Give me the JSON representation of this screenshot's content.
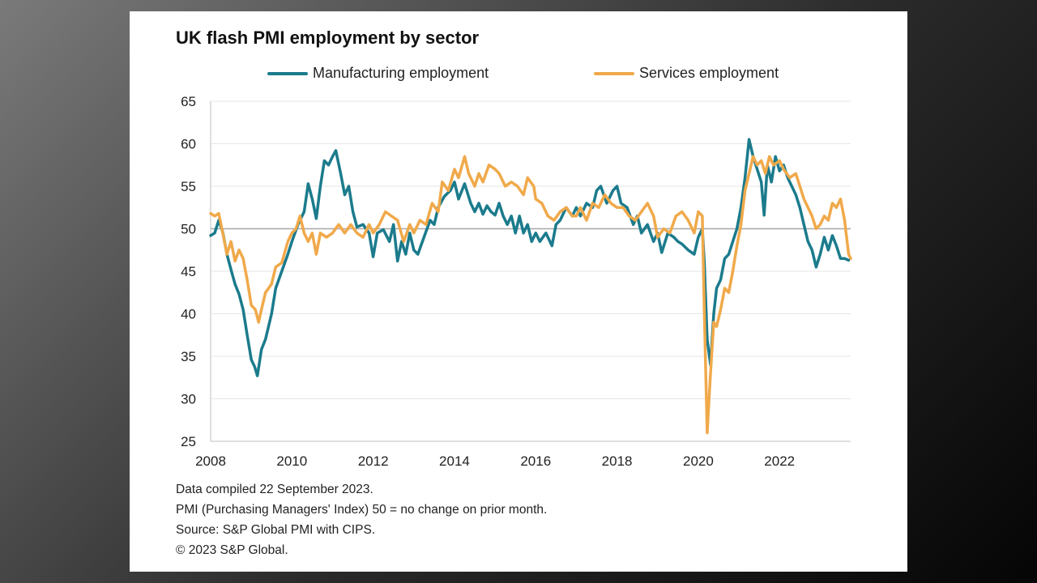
{
  "chart_data": {
    "type": "line",
    "title": "UK flash PMI employment by sector",
    "xlabel": "",
    "ylabel": "",
    "xlim": [
      2008.0,
      2023.75
    ],
    "ylim": [
      25,
      65
    ],
    "yticks": [
      25,
      30,
      35,
      40,
      45,
      50,
      55,
      60,
      65
    ],
    "xticks": [
      2008,
      2010,
      2012,
      2014,
      2016,
      2018,
      2020,
      2022
    ],
    "reference_line": 50,
    "grid": true,
    "legend_position": "top",
    "series": [
      {
        "name": "Manufacturing employment",
        "color": "#1b7b8c",
        "points": [
          [
            2008.0,
            49.2
          ],
          [
            2008.1,
            49.5
          ],
          [
            2008.2,
            51.0
          ],
          [
            2008.3,
            49.6
          ],
          [
            2008.4,
            47.0
          ],
          [
            2008.5,
            45.2
          ],
          [
            2008.6,
            43.5
          ],
          [
            2008.7,
            42.3
          ],
          [
            2008.8,
            40.5
          ],
          [
            2008.9,
            37.5
          ],
          [
            2009.0,
            34.6
          ],
          [
            2009.08,
            33.8
          ],
          [
            2009.15,
            32.7
          ],
          [
            2009.25,
            35.8
          ],
          [
            2009.35,
            37.0
          ],
          [
            2009.5,
            40.0
          ],
          [
            2009.6,
            43.0
          ],
          [
            2009.75,
            45.0
          ],
          [
            2009.9,
            47.0
          ],
          [
            2010.0,
            48.5
          ],
          [
            2010.15,
            50.5
          ],
          [
            2010.3,
            52.0
          ],
          [
            2010.4,
            55.3
          ],
          [
            2010.5,
            53.5
          ],
          [
            2010.6,
            51.2
          ],
          [
            2010.7,
            55.0
          ],
          [
            2010.8,
            58.0
          ],
          [
            2010.9,
            57.5
          ],
          [
            2011.0,
            58.5
          ],
          [
            2011.08,
            59.2
          ],
          [
            2011.2,
            56.5
          ],
          [
            2011.3,
            54.0
          ],
          [
            2011.4,
            55.0
          ],
          [
            2011.5,
            52.0
          ],
          [
            2011.6,
            50.2
          ],
          [
            2011.75,
            50.5
          ],
          [
            2011.9,
            49.5
          ],
          [
            2012.0,
            46.7
          ],
          [
            2012.1,
            49.5
          ],
          [
            2012.25,
            49.9
          ],
          [
            2012.4,
            48.5
          ],
          [
            2012.5,
            50.5
          ],
          [
            2012.6,
            46.2
          ],
          [
            2012.7,
            48.5
          ],
          [
            2012.8,
            47.0
          ],
          [
            2012.9,
            49.5
          ],
          [
            2013.0,
            47.5
          ],
          [
            2013.1,
            47.0
          ],
          [
            2013.25,
            49.0
          ],
          [
            2013.4,
            51.0
          ],
          [
            2013.5,
            50.5
          ],
          [
            2013.6,
            52.5
          ],
          [
            2013.75,
            53.8
          ],
          [
            2013.9,
            54.5
          ],
          [
            2014.0,
            55.5
          ],
          [
            2014.1,
            53.5
          ],
          [
            2014.25,
            55.3
          ],
          [
            2014.4,
            53.0
          ],
          [
            2014.5,
            52.0
          ],
          [
            2014.6,
            53.0
          ],
          [
            2014.7,
            51.7
          ],
          [
            2014.8,
            52.7
          ],
          [
            2014.9,
            52.0
          ],
          [
            2015.0,
            51.6
          ],
          [
            2015.1,
            53.0
          ],
          [
            2015.2,
            51.5
          ],
          [
            2015.3,
            50.5
          ],
          [
            2015.4,
            51.5
          ],
          [
            2015.5,
            49.5
          ],
          [
            2015.6,
            51.5
          ],
          [
            2015.7,
            49.5
          ],
          [
            2015.8,
            50.5
          ],
          [
            2015.9,
            48.5
          ],
          [
            2016.0,
            49.5
          ],
          [
            2016.1,
            48.5
          ],
          [
            2016.25,
            49.5
          ],
          [
            2016.4,
            48.0
          ],
          [
            2016.5,
            50.5
          ],
          [
            2016.6,
            51.0
          ],
          [
            2016.75,
            52.5
          ],
          [
            2016.9,
            51.5
          ],
          [
            2017.0,
            52.5
          ],
          [
            2017.1,
            51.5
          ],
          [
            2017.25,
            53.0
          ],
          [
            2017.4,
            52.5
          ],
          [
            2017.5,
            54.5
          ],
          [
            2017.6,
            55.0
          ],
          [
            2017.75,
            53.0
          ],
          [
            2017.9,
            54.5
          ],
          [
            2018.0,
            55.0
          ],
          [
            2018.1,
            53.0
          ],
          [
            2018.25,
            52.5
          ],
          [
            2018.4,
            50.5
          ],
          [
            2018.5,
            51.5
          ],
          [
            2018.6,
            49.5
          ],
          [
            2018.75,
            50.5
          ],
          [
            2018.9,
            48.5
          ],
          [
            2019.0,
            49.5
          ],
          [
            2019.1,
            47.2
          ],
          [
            2019.25,
            49.5
          ],
          [
            2019.4,
            49.0
          ],
          [
            2019.5,
            48.5
          ],
          [
            2019.6,
            48.2
          ],
          [
            2019.75,
            47.5
          ],
          [
            2019.9,
            47.0
          ],
          [
            2020.0,
            49.0
          ],
          [
            2020.1,
            50.0
          ],
          [
            2020.15,
            46.0
          ],
          [
            2020.22,
            37.0
          ],
          [
            2020.3,
            34.0
          ],
          [
            2020.38,
            40.0
          ],
          [
            2020.45,
            43.0
          ],
          [
            2020.55,
            44.0
          ],
          [
            2020.65,
            46.5
          ],
          [
            2020.75,
            47.0
          ],
          [
            2020.85,
            48.5
          ],
          [
            2020.95,
            50.0
          ],
          [
            2021.05,
            52.5
          ],
          [
            2021.15,
            56.0
          ],
          [
            2021.25,
            60.5
          ],
          [
            2021.35,
            58.5
          ],
          [
            2021.45,
            57.0
          ],
          [
            2021.55,
            55.5
          ],
          [
            2021.62,
            51.6
          ],
          [
            2021.7,
            57.5
          ],
          [
            2021.8,
            55.5
          ],
          [
            2021.9,
            58.5
          ],
          [
            2022.0,
            56.8
          ],
          [
            2022.1,
            57.5
          ],
          [
            2022.2,
            56.0
          ],
          [
            2022.3,
            55.0
          ],
          [
            2022.4,
            54.0
          ],
          [
            2022.5,
            52.5
          ],
          [
            2022.6,
            50.5
          ],
          [
            2022.7,
            48.5
          ],
          [
            2022.8,
            47.5
          ],
          [
            2022.9,
            45.5
          ],
          [
            2023.0,
            47.0
          ],
          [
            2023.1,
            49.0
          ],
          [
            2023.2,
            47.5
          ],
          [
            2023.3,
            49.2
          ],
          [
            2023.4,
            48.0
          ],
          [
            2023.5,
            46.5
          ],
          [
            2023.6,
            46.5
          ],
          [
            2023.7,
            46.3
          ]
        ]
      },
      {
        "name": "Services employment",
        "color": "#f0a94a",
        "points": [
          [
            2008.0,
            51.8
          ],
          [
            2008.1,
            51.5
          ],
          [
            2008.2,
            51.8
          ],
          [
            2008.3,
            49.5
          ],
          [
            2008.4,
            47.0
          ],
          [
            2008.5,
            48.5
          ],
          [
            2008.6,
            46.2
          ],
          [
            2008.7,
            47.5
          ],
          [
            2008.8,
            46.5
          ],
          [
            2008.9,
            44.0
          ],
          [
            2009.0,
            41.0
          ],
          [
            2009.1,
            40.5
          ],
          [
            2009.18,
            39.0
          ],
          [
            2009.25,
            40.5
          ],
          [
            2009.35,
            42.5
          ],
          [
            2009.5,
            43.5
          ],
          [
            2009.6,
            45.5
          ],
          [
            2009.75,
            46.0
          ],
          [
            2009.9,
            48.5
          ],
          [
            2010.0,
            49.5
          ],
          [
            2010.1,
            50.0
          ],
          [
            2010.2,
            51.5
          ],
          [
            2010.3,
            49.5
          ],
          [
            2010.4,
            48.5
          ],
          [
            2010.5,
            49.5
          ],
          [
            2010.6,
            47.0
          ],
          [
            2010.7,
            49.5
          ],
          [
            2010.85,
            49.0
          ],
          [
            2011.0,
            49.5
          ],
          [
            2011.15,
            50.5
          ],
          [
            2011.3,
            49.5
          ],
          [
            2011.45,
            50.5
          ],
          [
            2011.6,
            49.5
          ],
          [
            2011.75,
            49.0
          ],
          [
            2011.9,
            50.5
          ],
          [
            2012.0,
            49.5
          ],
          [
            2012.15,
            50.5
          ],
          [
            2012.3,
            52.0
          ],
          [
            2012.45,
            51.5
          ],
          [
            2012.6,
            51.0
          ],
          [
            2012.75,
            48.5
          ],
          [
            2012.9,
            50.5
          ],
          [
            2013.0,
            49.5
          ],
          [
            2013.15,
            51.0
          ],
          [
            2013.3,
            50.5
          ],
          [
            2013.45,
            53.0
          ],
          [
            2013.6,
            52.0
          ],
          [
            2013.7,
            55.5
          ],
          [
            2013.85,
            54.5
          ],
          [
            2014.0,
            57.0
          ],
          [
            2014.1,
            56.0
          ],
          [
            2014.25,
            58.5
          ],
          [
            2014.35,
            56.5
          ],
          [
            2014.5,
            55.0
          ],
          [
            2014.6,
            56.5
          ],
          [
            2014.7,
            55.5
          ],
          [
            2014.85,
            57.5
          ],
          [
            2015.0,
            57.0
          ],
          [
            2015.1,
            56.5
          ],
          [
            2015.25,
            55.0
          ],
          [
            2015.4,
            55.5
          ],
          [
            2015.55,
            55.0
          ],
          [
            2015.7,
            54.0
          ],
          [
            2015.8,
            56.0
          ],
          [
            2015.95,
            55.0
          ],
          [
            2016.0,
            53.5
          ],
          [
            2016.15,
            53.0
          ],
          [
            2016.3,
            51.5
          ],
          [
            2016.45,
            51.0
          ],
          [
            2016.6,
            52.0
          ],
          [
            2016.75,
            52.5
          ],
          [
            2016.9,
            51.5
          ],
          [
            2017.0,
            51.5
          ],
          [
            2017.1,
            52.5
          ],
          [
            2017.25,
            51.0
          ],
          [
            2017.4,
            53.0
          ],
          [
            2017.55,
            52.5
          ],
          [
            2017.7,
            54.0
          ],
          [
            2017.85,
            53.0
          ],
          [
            2018.0,
            52.5
          ],
          [
            2018.15,
            52.5
          ],
          [
            2018.3,
            51.5
          ],
          [
            2018.45,
            51.0
          ],
          [
            2018.6,
            52.0
          ],
          [
            2018.75,
            53.0
          ],
          [
            2018.9,
            51.5
          ],
          [
            2019.0,
            49.0
          ],
          [
            2019.15,
            50.0
          ],
          [
            2019.3,
            49.5
          ],
          [
            2019.45,
            51.5
          ],
          [
            2019.6,
            52.0
          ],
          [
            2019.75,
            51.0
          ],
          [
            2019.9,
            49.5
          ],
          [
            2020.0,
            52.0
          ],
          [
            2020.1,
            51.5
          ],
          [
            2020.15,
            40.0
          ],
          [
            2020.22,
            26.0
          ],
          [
            2020.3,
            33.0
          ],
          [
            2020.38,
            39.0
          ],
          [
            2020.45,
            38.5
          ],
          [
            2020.55,
            40.5
          ],
          [
            2020.65,
            43.0
          ],
          [
            2020.75,
            42.5
          ],
          [
            2020.85,
            45.0
          ],
          [
            2020.95,
            48.0
          ],
          [
            2021.05,
            50.5
          ],
          [
            2021.15,
            54.5
          ],
          [
            2021.25,
            56.5
          ],
          [
            2021.35,
            58.5
          ],
          [
            2021.45,
            57.5
          ],
          [
            2021.55,
            58.0
          ],
          [
            2021.65,
            56.5
          ],
          [
            2021.75,
            58.5
          ],
          [
            2021.85,
            57.5
          ],
          [
            2022.0,
            58.0
          ],
          [
            2022.1,
            57.0
          ],
          [
            2022.25,
            56.0
          ],
          [
            2022.4,
            56.5
          ],
          [
            2022.5,
            55.0
          ],
          [
            2022.6,
            53.5
          ],
          [
            2022.7,
            52.5
          ],
          [
            2022.8,
            51.5
          ],
          [
            2022.9,
            50.0
          ],
          [
            2023.0,
            50.5
          ],
          [
            2023.1,
            51.5
          ],
          [
            2023.2,
            51.0
          ],
          [
            2023.3,
            53.0
          ],
          [
            2023.4,
            52.5
          ],
          [
            2023.5,
            53.5
          ],
          [
            2023.6,
            51.0
          ],
          [
            2023.7,
            47.0
          ],
          [
            2023.75,
            46.5
          ]
        ]
      }
    ]
  },
  "notes": {
    "line1": "Data compiled 22 September 2023.",
    "line2": "PMI (Purchasing Managers' Index) 50 = no change on prior month.",
    "line3": "Source: S&P Global PMI with CIPS.",
    "line4": "© 2023 S&P Global."
  }
}
